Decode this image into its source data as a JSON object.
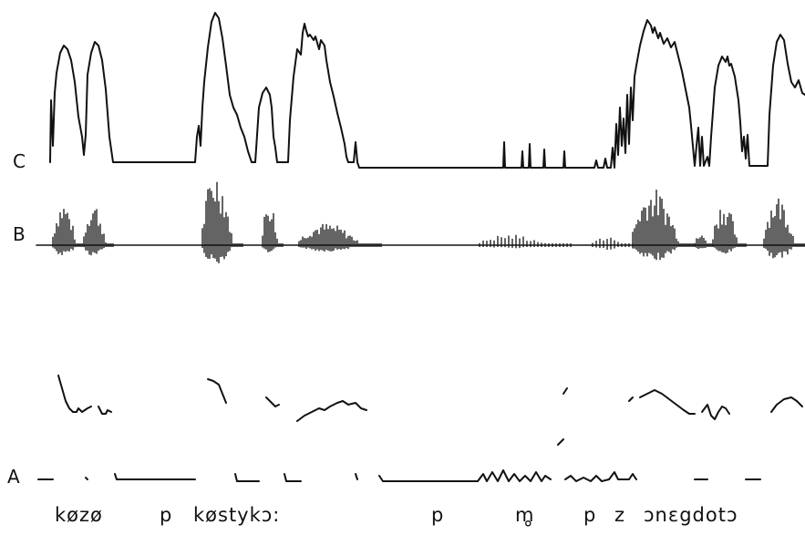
{
  "row_labels": {
    "c": "C",
    "b": "B",
    "a": "A"
  },
  "transcription": [
    "køzø",
    "p",
    "køstykɔ:",
    "p",
    "m",
    "p",
    "z",
    "ɔnɛgdotɔ"
  ],
  "diacritic": "°",
  "colors": {
    "ink": "#111111",
    "background": "#ffffff"
  }
}
